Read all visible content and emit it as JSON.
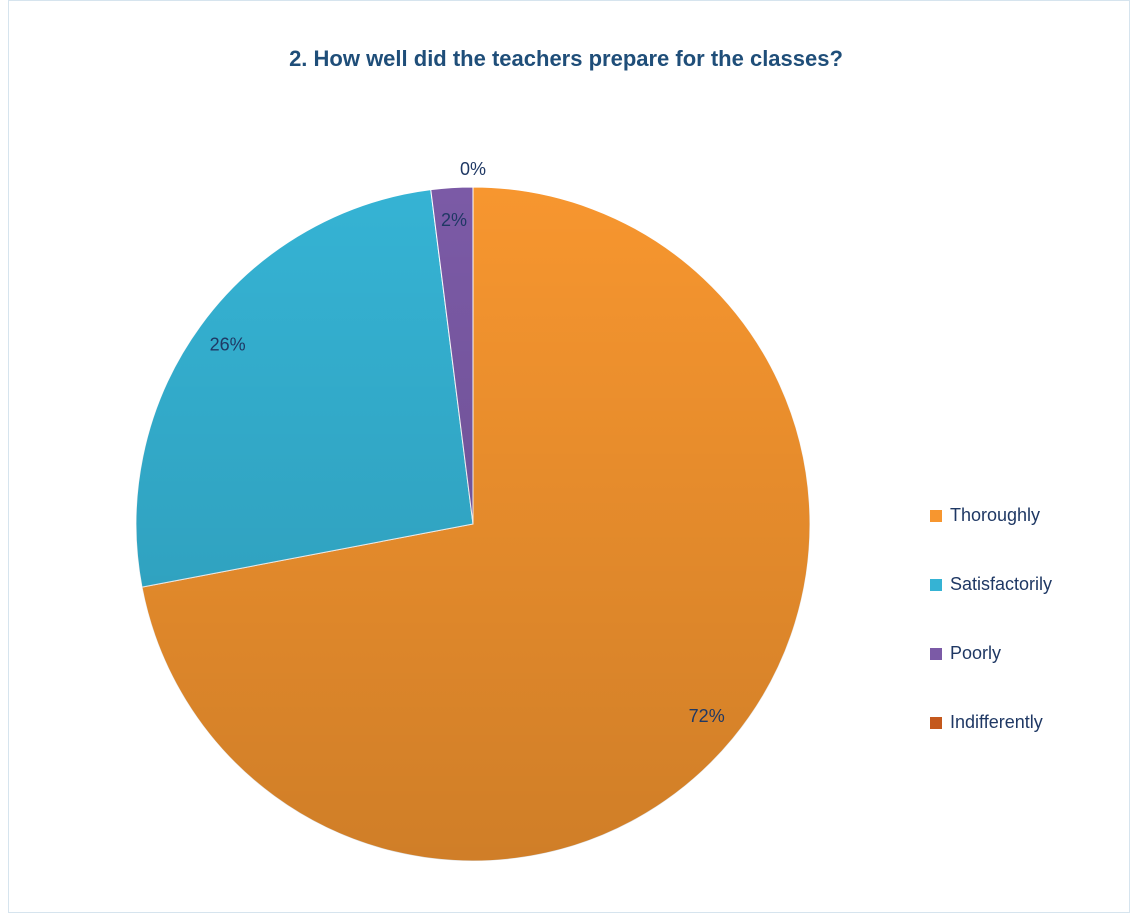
{
  "chart_data": {
    "type": "pie",
    "title": "2. How well did the teachers prepare for the classes?",
    "categories": [
      "Thoroughly",
      "Satisfactorily",
      "Poorly",
      "Indifferently"
    ],
    "values": [
      72,
      26,
      2,
      0
    ],
    "value_labels": [
      "72%",
      "26%",
      "2%",
      "0%"
    ],
    "colors": [
      "#f7962f",
      "#35b3d4",
      "#7b5aa6",
      "#c4581c"
    ],
    "legend": "right"
  }
}
